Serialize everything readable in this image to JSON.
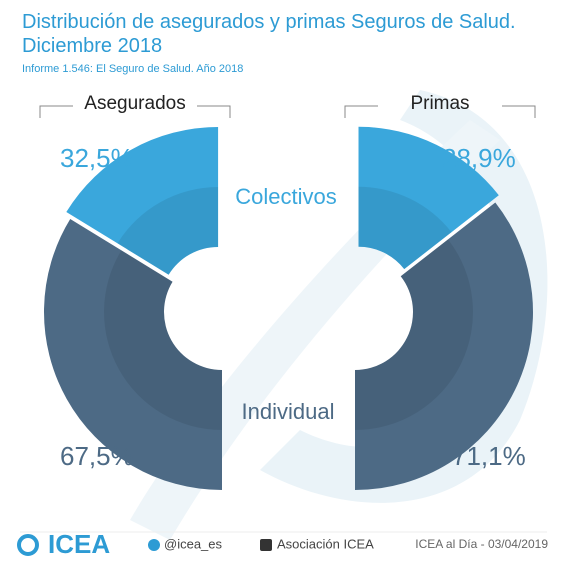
{
  "chart_data": {
    "type": "donut",
    "title": "Distribución de asegurados y primas Seguros de Salud. Diciembre 2018",
    "subtitle": "Informe 1.546: El Seguro de Salud. Año 2018",
    "categories": [
      "Colectivos",
      "Individual"
    ],
    "colors": [
      "#3aa7dc",
      "#4d6a85"
    ],
    "series": [
      {
        "name": "Asegurados",
        "values": [
          32.5,
          67.5
        ],
        "value_labels": [
          "32,5%",
          "67,5%"
        ]
      },
      {
        "name": "Primas",
        "values": [
          28.9,
          71.1
        ],
        "value_labels": [
          "28,9%",
          "71,1%"
        ]
      }
    ]
  },
  "footer": {
    "logo": "ICEA",
    "twitter": "@icea_es",
    "linkedin": "Asociación ICEA",
    "date": "ICEA al Día - 03/04/2019"
  }
}
